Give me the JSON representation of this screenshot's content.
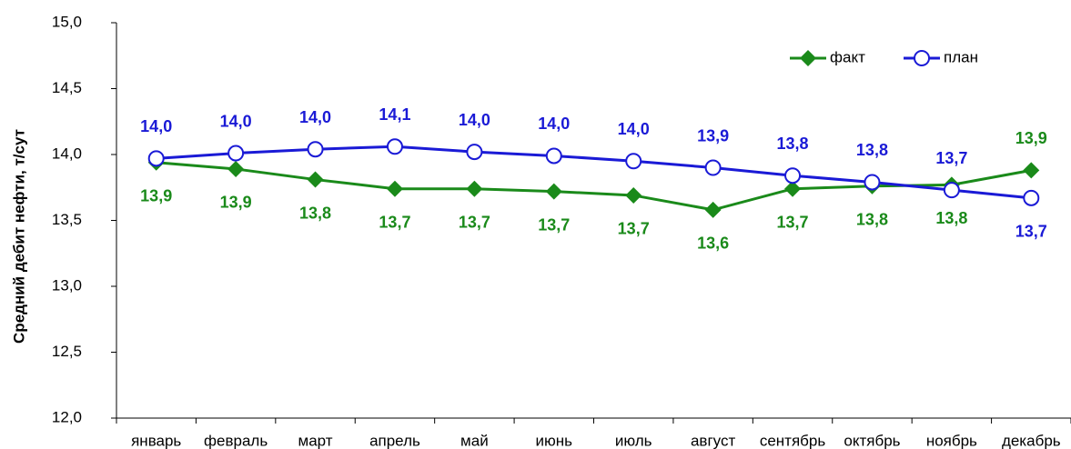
{
  "chart_data": {
    "type": "line",
    "y_label": "Средний дебит нефти, т/сут",
    "categories": [
      "январь",
      "февраль",
      "март",
      "апрель",
      "май",
      "июнь",
      "июль",
      "август",
      "сентябрь",
      "октябрь",
      "ноябрь",
      "декабрь"
    ],
    "series": [
      {
        "name": "факт",
        "color": "#1a8a1a",
        "marker": "diamond",
        "values": [
          13.94,
          13.89,
          13.81,
          13.74,
          13.74,
          13.72,
          13.69,
          13.58,
          13.74,
          13.76,
          13.77,
          13.88
        ],
        "value_labels": [
          "13,9",
          "13,9",
          "13,8",
          "13,7",
          "13,7",
          "13,7",
          "13,7",
          "13,6",
          "13,7",
          "13,8",
          "13,8",
          "13,9"
        ]
      },
      {
        "name": "план",
        "color": "#1a1ad6",
        "marker": "circle",
        "values": [
          13.97,
          14.01,
          14.04,
          14.06,
          14.02,
          13.99,
          13.95,
          13.9,
          13.84,
          13.79,
          13.73,
          13.67
        ],
        "value_labels": [
          "14,0",
          "14,0",
          "14,0",
          "14,1",
          "14,0",
          "14,0",
          "14,0",
          "13,9",
          "13,8",
          "13,8",
          "13,7",
          "13,7"
        ]
      }
    ],
    "ylim": [
      12,
      15
    ],
    "yticks": [
      {
        "value": 12,
        "label": "12,0"
      },
      {
        "value": 12.5,
        "label": "12,5"
      },
      {
        "value": 13,
        "label": "13,0"
      },
      {
        "value": 13.5,
        "label": "13,5"
      },
      {
        "value": 14,
        "label": "14,0"
      },
      {
        "value": 14.5,
        "label": "14,5"
      },
      {
        "value": 15,
        "label": "15,0"
      }
    ],
    "grid": false,
    "legend": "top-right"
  }
}
